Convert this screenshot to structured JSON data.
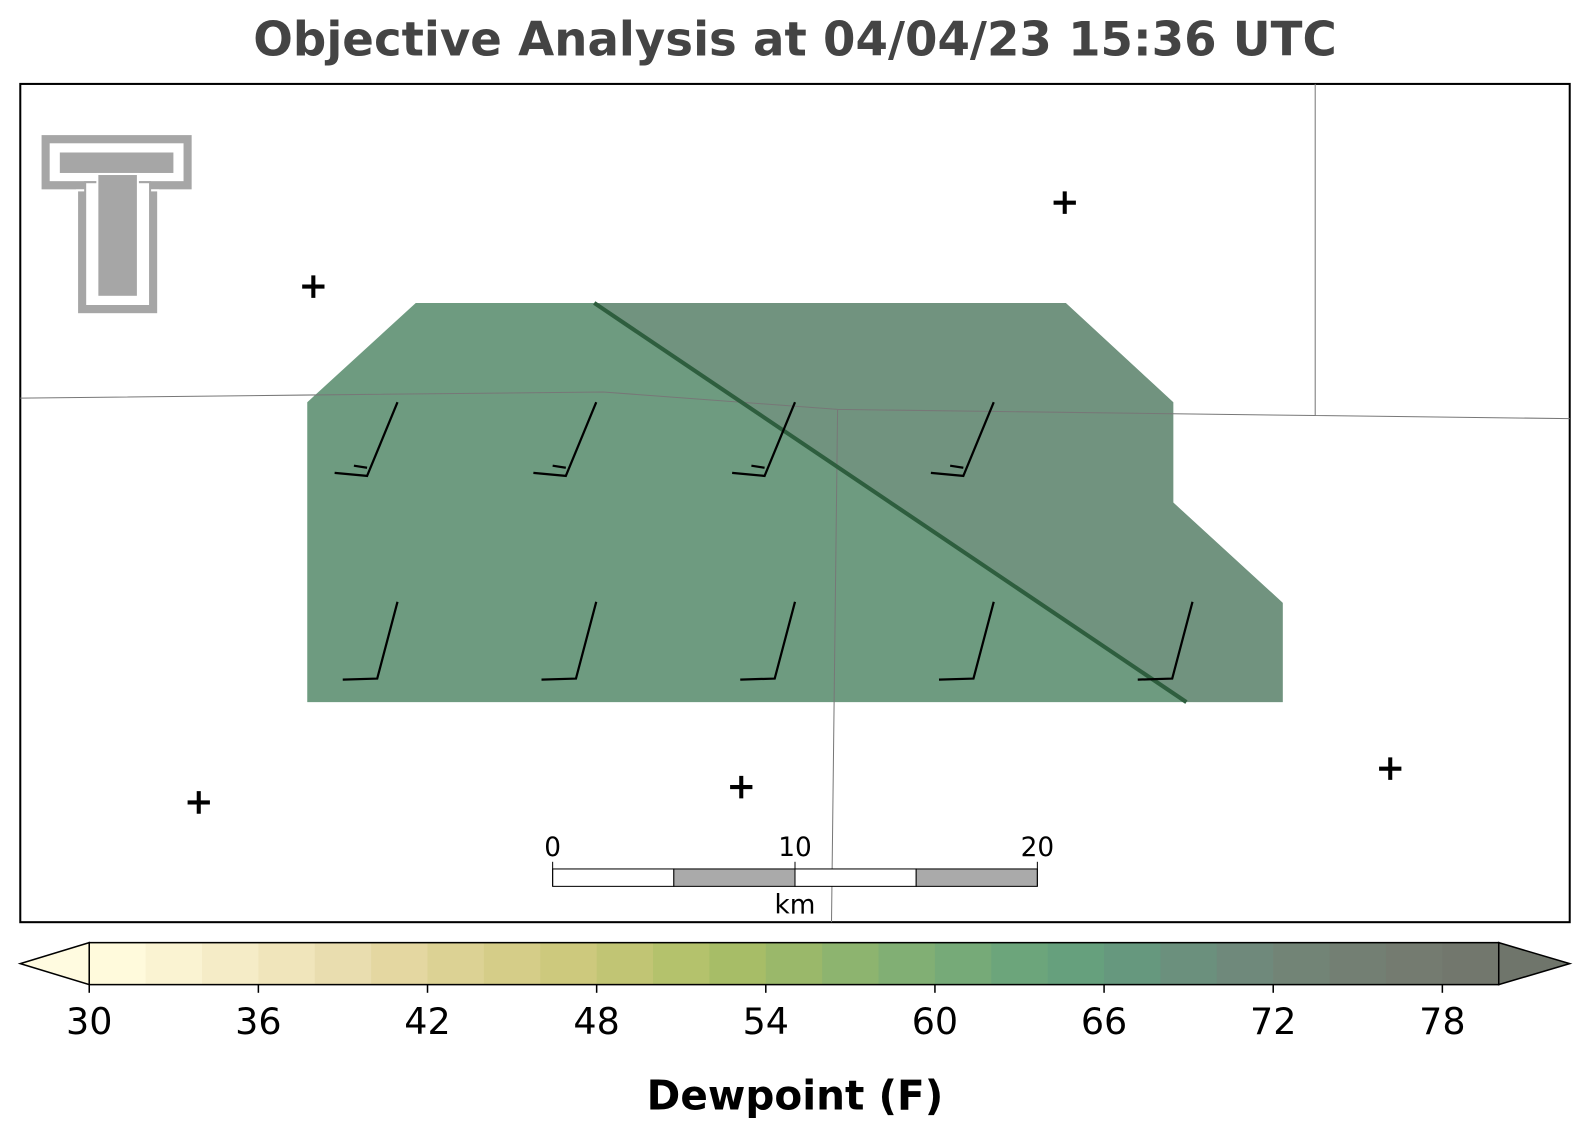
{
  "title": "Objective Analysis at 04/04/23 15:36 UTC",
  "colorbar": {
    "label": "Dewpoint (F)",
    "lim": [
      30,
      80
    ],
    "step": 2,
    "ticks": [
      30,
      36,
      42,
      48,
      54,
      60,
      66,
      72,
      78
    ],
    "colors": [
      "#fffadc",
      "#faf3d2",
      "#f5ecc7",
      "#f0e5bb",
      "#e9ddaf",
      "#e4d7a1",
      "#dcd294",
      "#d5cd88",
      "#cdc97d",
      "#c1c574",
      "#b4c26c",
      "#a7bd67",
      "#9ab86a",
      "#8db46f",
      "#81af74",
      "#76aa78",
      "#6ca57b",
      "#66a07d",
      "#66987e",
      "#6b907d",
      "#6f897b",
      "#728476",
      "#737f73",
      "#747b70",
      "#72776d"
    ],
    "under_color": "#fffbe0",
    "over_color": "#6f756b"
  },
  "scale_bar": {
    "ticks": [
      0,
      10,
      20
    ],
    "unit": "km"
  }
}
